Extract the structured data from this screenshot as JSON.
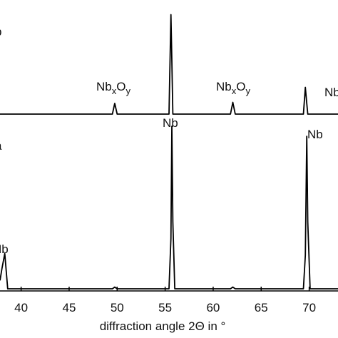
{
  "chart_data": [
    {
      "type": "line",
      "panel": "b",
      "x": [
        37.8,
        38.0,
        38.3,
        38.6,
        49.5,
        49.75,
        50.0,
        55.4,
        55.6,
        55.7,
        55.8,
        56.0,
        61.8,
        62.05,
        62.3,
        69.4,
        69.6,
        69.75,
        69.85,
        70.1,
        73.0
      ],
      "series": [
        {
          "color": "#000000",
          "values": [
            0,
            0,
            0,
            0,
            0,
            10,
            0,
            0,
            93,
            50,
            0,
            0,
            0,
            11,
            0,
            0,
            25,
            10,
            0,
            0,
            0
          ]
        }
      ],
      "xlim": [
        37.8,
        73.0
      ],
      "ylim": [
        0,
        100
      ],
      "annotations": [
        [
          "Nb",
          "x",
          "O",
          "y"
        ],
        [
          "Nb",
          "x",
          "O",
          "y"
        ],
        [
          "Nb"
        ]
      ]
    },
    {
      "type": "line",
      "panel": "a",
      "x": [
        37.8,
        38.0,
        38.3,
        38.6,
        49.5,
        49.75,
        50.0,
        55.4,
        55.6,
        55.7,
        55.8,
        56.0,
        61.8,
        62.05,
        62.3,
        69.4,
        69.6,
        69.75,
        69.85,
        70.1,
        73.0
      ],
      "series": [
        {
          "color": "#000000",
          "values": [
            5,
            12,
            21,
            0,
            0,
            1,
            0,
            0,
            30,
            97,
            40,
            0,
            0,
            1,
            0,
            0,
            20,
            91,
            40,
            0,
            0
          ]
        }
      ],
      "xlim": [
        37.8,
        73.0
      ],
      "ylim": [
        0,
        100
      ],
      "xticks": [
        40,
        45,
        50,
        55,
        60,
        65,
        70
      ],
      "xlabel": "diffraction angle 2Θ in °",
      "annotations": [
        [
          "Nb"
        ],
        [
          "Nb"
        ],
        [
          "Nb"
        ]
      ]
    }
  ]
}
